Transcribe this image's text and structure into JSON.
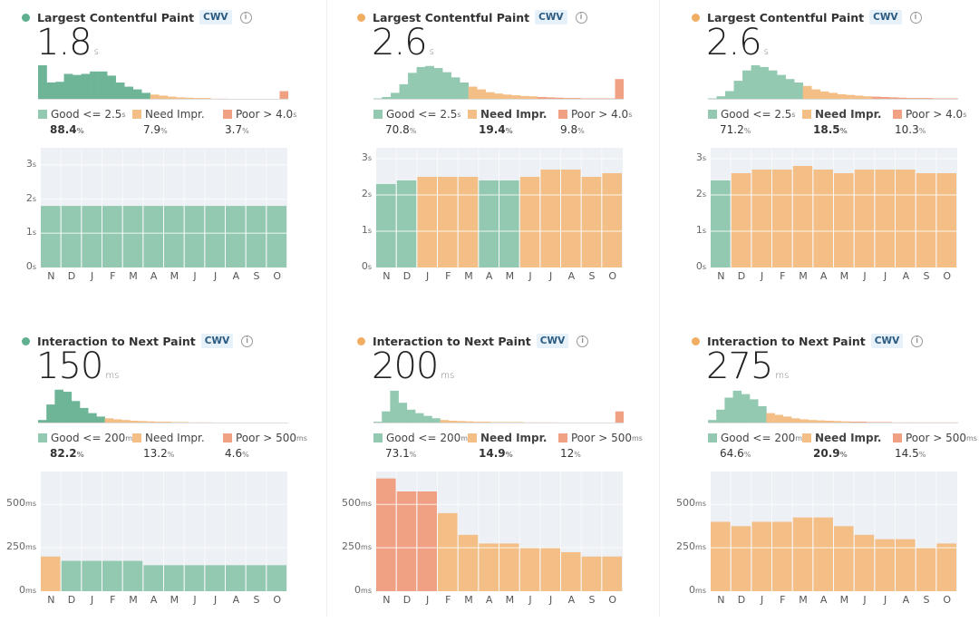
{
  "colors": {
    "good": "#93c9b0",
    "good_dark": "#6db596",
    "needs": "#f4be87",
    "poor": "#f0a083",
    "plot_bg": "#edf0f5"
  },
  "months": [
    "N",
    "D",
    "J",
    "F",
    "M",
    "A",
    "M",
    "J",
    "J",
    "A",
    "S",
    "O"
  ],
  "panels": [
    {
      "title": "Largest Contentful Paint",
      "badge": "CWV",
      "info": "i",
      "status": "good",
      "value": "1.8",
      "unit": "s",
      "legend": [
        {
          "label": "Good <= 2.5",
          "unit": "s",
          "pct": "88.4",
          "bold": true
        },
        {
          "label": "Need Impr.",
          "unit": "",
          "pct": "7.9",
          "bold": false
        },
        {
          "label": "Poor > 4.0",
          "unit": "s",
          "pct": "3.7",
          "bold": false
        }
      ],
      "histogram": {
        "good": [
          1,
          0.5,
          0.52,
          0.75,
          0.72,
          0.75,
          0.82,
          0.82,
          0.7,
          0.5,
          0.38,
          0.3,
          0.2
        ],
        "needs": [
          0.15,
          0.12,
          0.09,
          0.07,
          0.06,
          0.05,
          0.05
        ],
        "poor": [
          0.03,
          0.03,
          0.02,
          0.02,
          0.02,
          0.02,
          0.02,
          0.02,
          0.25
        ]
      },
      "chart": {
        "y_ticks": [
          0,
          1,
          2,
          3
        ],
        "y_unit": "s",
        "y_max": 3.5,
        "values": [
          1.8,
          1.8,
          1.8,
          1.8,
          1.8,
          1.8,
          1.8,
          1.8,
          1.8,
          1.8,
          1.8,
          1.8
        ],
        "status": [
          "good",
          "good",
          "good",
          "good",
          "good",
          "good",
          "good",
          "good",
          "good",
          "good",
          "good",
          "good"
        ]
      }
    },
    {
      "title": "Largest Contentful Paint",
      "badge": "CWV",
      "info": "i",
      "status": "needs",
      "value": "2.6",
      "unit": "s",
      "legend": [
        {
          "label": "Good <= 2.5",
          "unit": "s",
          "pct": "70.8",
          "bold": false
        },
        {
          "label": "Need Impr.",
          "unit": "",
          "pct": "19.4",
          "bold": true
        },
        {
          "label": "Poor > 4.0",
          "unit": "s",
          "pct": "9.8",
          "bold": false
        }
      ],
      "histogram": {
        "good": [
          0.04,
          0.08,
          0.2,
          0.45,
          0.78,
          0.95,
          0.98,
          0.92,
          0.8,
          0.65,
          0.5
        ],
        "needs": [
          0.38,
          0.3,
          0.22,
          0.18,
          0.15,
          0.13,
          0.11,
          0.1
        ],
        "poor": [
          0.08,
          0.07,
          0.06,
          0.05,
          0.05,
          0.04,
          0.04,
          0.04,
          0.04,
          0.6
        ]
      },
      "chart": {
        "y_ticks": [
          0,
          1,
          2,
          3
        ],
        "y_unit": "s",
        "y_max": 3.3,
        "values": [
          2.3,
          2.4,
          2.5,
          2.5,
          2.5,
          2.4,
          2.4,
          2.5,
          2.7,
          2.7,
          2.5,
          2.6
        ],
        "status": [
          "good",
          "good",
          "needs",
          "needs",
          "needs",
          "good",
          "good",
          "needs",
          "needs",
          "needs",
          "needs",
          "needs"
        ]
      }
    },
    {
      "title": "Largest Contentful Paint",
      "badge": "CWV",
      "info": "i",
      "status": "needs",
      "value": "2.6",
      "unit": "s",
      "legend": [
        {
          "label": "Good <= 2.5",
          "unit": "s",
          "pct": "71.2",
          "bold": false
        },
        {
          "label": "Need Impr.",
          "unit": "",
          "pct": "18.5",
          "bold": true
        },
        {
          "label": "Poor > 4.0",
          "unit": "s",
          "pct": "10.3",
          "bold": false
        }
      ],
      "histogram": {
        "good": [
          0.04,
          0.1,
          0.25,
          0.55,
          0.85,
          1,
          0.95,
          0.85,
          0.72,
          0.6,
          0.5
        ],
        "needs": [
          0.4,
          0.3,
          0.24,
          0.2,
          0.16,
          0.14,
          0.12,
          0.1
        ],
        "poor": [
          0.09,
          0.08,
          0.07,
          0.06,
          0.05,
          0.05,
          0.05,
          0.04,
          0.04,
          0.04
        ]
      },
      "chart": {
        "y_ticks": [
          0,
          1,
          2,
          3
        ],
        "y_unit": "s",
        "y_max": 3.3,
        "values": [
          2.4,
          2.6,
          2.7,
          2.7,
          2.8,
          2.7,
          2.6,
          2.7,
          2.7,
          2.7,
          2.6,
          2.6
        ],
        "status": [
          "good",
          "needs",
          "needs",
          "needs",
          "needs",
          "needs",
          "needs",
          "needs",
          "needs",
          "needs",
          "needs",
          "needs"
        ]
      }
    },
    {
      "title": "Interaction to Next Paint",
      "badge": "CWV",
      "info": "i",
      "status": "good",
      "value": "150",
      "unit": "ms",
      "legend": [
        {
          "label": "Good <= 200",
          "unit": "ms",
          "pct": "82.2",
          "bold": true
        },
        {
          "label": "Need Impr.",
          "unit": "",
          "pct": "13.2",
          "bold": false
        },
        {
          "label": "Poor > 500",
          "unit": "ms",
          "pct": "4.6",
          "bold": false
        }
      ],
      "histogram": {
        "good": [
          0.1,
          0.55,
          0.98,
          0.92,
          0.65,
          0.45,
          0.3,
          0.2
        ],
        "needs": [
          0.15,
          0.12,
          0.1,
          0.08,
          0.07,
          0.06,
          0.05,
          0.05,
          0.04,
          0.04
        ],
        "poor": [
          0.03,
          0.03,
          0.03,
          0.02,
          0.02,
          0.02,
          0.02,
          0.02,
          0.02,
          0.02,
          0.02,
          0.02
        ]
      },
      "chart": {
        "y_ticks": [
          0,
          250,
          500
        ],
        "y_unit": "ms",
        "y_max": 690,
        "values": [
          200,
          175,
          175,
          175,
          175,
          150,
          150,
          150,
          150,
          150,
          150,
          150
        ],
        "status": [
          "needs",
          "good",
          "good",
          "good",
          "good",
          "good",
          "good",
          "good",
          "good",
          "good",
          "good",
          "good"
        ]
      }
    },
    {
      "title": "Interaction to Next Paint",
      "badge": "CWV",
      "info": "i",
      "status": "needs",
      "value": "200",
      "unit": "ms",
      "legend": [
        {
          "label": "Good <= 200",
          "unit": "ms",
          "pct": "73.1",
          "bold": false
        },
        {
          "label": "Need Impr.",
          "unit": "",
          "pct": "14.9",
          "bold": true
        },
        {
          "label": "Poor > 500",
          "unit": "ms",
          "pct": "12",
          "bold": false
        }
      ],
      "histogram": {
        "good": [
          0.05,
          0.35,
          0.95,
          0.6,
          0.4,
          0.3,
          0.22,
          0.15
        ],
        "needs": [
          0.1,
          0.08,
          0.07,
          0.06,
          0.05,
          0.05,
          0.04,
          0.04,
          0.04,
          0.04
        ],
        "poor": [
          0.03,
          0.03,
          0.03,
          0.03,
          0.02,
          0.02,
          0.02,
          0.02,
          0.02,
          0.02,
          0.02,
          0.35
        ]
      },
      "chart": {
        "y_ticks": [
          0,
          250,
          500
        ],
        "y_unit": "ms",
        "y_max": 690,
        "values": [
          650,
          575,
          575,
          450,
          325,
          275,
          275,
          250,
          250,
          225,
          200,
          200
        ],
        "status": [
          "poor",
          "poor",
          "poor",
          "needs",
          "needs",
          "needs",
          "needs",
          "needs",
          "needs",
          "needs",
          "needs",
          "needs"
        ]
      }
    },
    {
      "title": "Interaction to Next Paint",
      "badge": "CWV",
      "info": "i",
      "status": "needs",
      "value": "275",
      "unit": "ms",
      "legend": [
        {
          "label": "Good <= 200",
          "unit": "ms",
          "pct": "64.6",
          "bold": false
        },
        {
          "label": "Need Impr.",
          "unit": "",
          "pct": "20.9",
          "bold": true
        },
        {
          "label": "Poor > 500",
          "unit": "ms",
          "pct": "14.5",
          "bold": false
        }
      ],
      "histogram": {
        "good": [
          0.1,
          0.4,
          0.75,
          0.95,
          0.85,
          0.7,
          0.5
        ],
        "needs": [
          0.3,
          0.25,
          0.2,
          0.15,
          0.12,
          0.1,
          0.09,
          0.08,
          0.07,
          0.06
        ],
        "poor": [
          0.05,
          0.05,
          0.04,
          0.04,
          0.04,
          0.03,
          0.03,
          0.03,
          0.03,
          0.03,
          0.03,
          0.03,
          0.03
        ]
      },
      "chart": {
        "y_ticks": [
          0,
          250,
          500
        ],
        "y_unit": "ms",
        "y_max": 690,
        "values": [
          400,
          375,
          400,
          400,
          425,
          425,
          375,
          325,
          300,
          300,
          250,
          275
        ],
        "status": [
          "needs",
          "needs",
          "needs",
          "needs",
          "needs",
          "needs",
          "needs",
          "needs",
          "needs",
          "needs",
          "needs",
          "needs"
        ]
      }
    }
  ]
}
